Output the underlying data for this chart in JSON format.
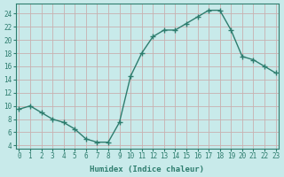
{
  "x": [
    0,
    1,
    2,
    3,
    4,
    5,
    6,
    7,
    8,
    9,
    10,
    11,
    12,
    13,
    14,
    15,
    16,
    17,
    18,
    19,
    20,
    21,
    22,
    23
  ],
  "y": [
    9.5,
    10,
    9,
    8,
    7.5,
    6.5,
    5,
    4.5,
    4.5,
    7.5,
    14.5,
    18,
    20.5,
    21.5,
    21.5,
    22.5,
    23.5,
    24.5,
    24.5,
    21.5,
    17.5,
    17,
    16,
    15
  ],
  "line_color": "#2e7d6e",
  "marker": "+",
  "markersize": 4,
  "linewidth": 1.0,
  "bg_color": "#c8eaea",
  "plot_bg_color": "#c8eaea",
  "grid_color": "#c8b0b0",
  "xlabel": "Humidex (Indice chaleur)",
  "ylabel": "",
  "yticks": [
    4,
    6,
    8,
    10,
    12,
    14,
    16,
    18,
    20,
    22,
    24
  ],
  "xticks": [
    0,
    1,
    2,
    3,
    4,
    5,
    6,
    7,
    8,
    9,
    10,
    11,
    12,
    13,
    14,
    15,
    16,
    17,
    18,
    19,
    20,
    21,
    22,
    23
  ],
  "xtick_labels": [
    "0",
    "1",
    "2",
    "3",
    "4",
    "5",
    "6",
    "7",
    "8",
    "9",
    "10",
    "11",
    "12",
    "13",
    "14",
    "15",
    "16",
    "17",
    "18",
    "19",
    "20",
    "21",
    "22",
    "23"
  ],
  "xlim": [
    -0.3,
    23.3
  ],
  "ylim": [
    3.5,
    25.5
  ],
  "spine_color": "#2e7d6e"
}
